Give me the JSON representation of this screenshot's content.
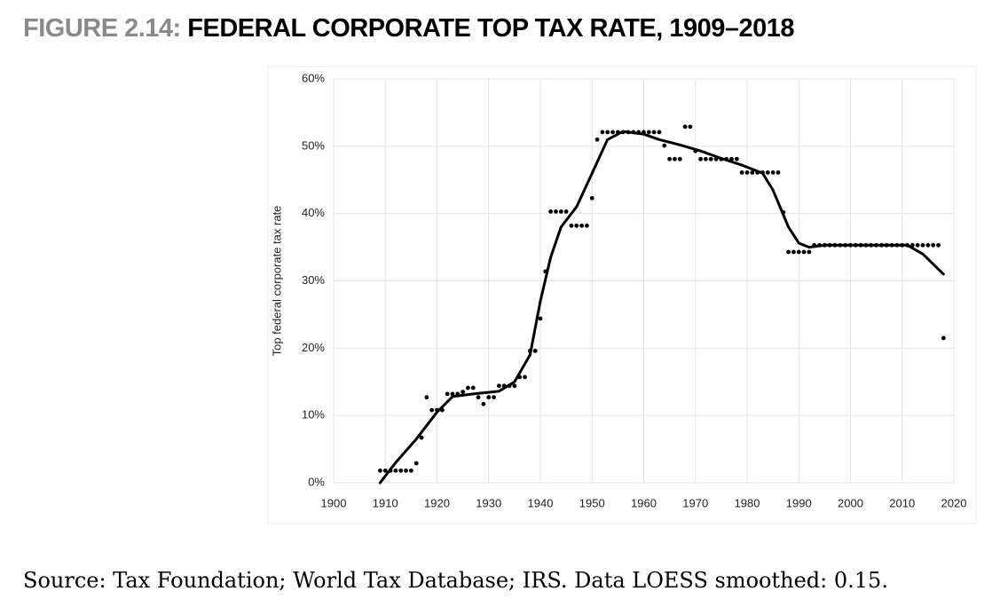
{
  "figure_label": "FIGURE 2.14:",
  "title": "FEDERAL CORPORATE TOP TAX RATE, 1909–2018",
  "chart_data": {
    "type": "scatter",
    "ylabel": "Top federal corporate tax rate",
    "xlim": [
      1900,
      2020
    ],
    "xticks": [
      1900,
      1910,
      1920,
      1930,
      1940,
      1950,
      1960,
      1970,
      1980,
      1990,
      2000,
      2010,
      2020
    ],
    "ylim": [
      0,
      60
    ],
    "yticks": [
      {
        "value": 0,
        "label": "0%"
      },
      {
        "value": 10,
        "label": "10%"
      },
      {
        "value": 20,
        "label": "20%"
      },
      {
        "value": 30,
        "label": "30%"
      },
      {
        "value": 40,
        "label": "40%"
      },
      {
        "value": 50,
        "label": "50%"
      },
      {
        "value": 60,
        "label": "60%"
      }
    ],
    "grid": true,
    "series": [
      {
        "type": "scatter",
        "color": "#000000",
        "x": [
          1909,
          1910,
          1911,
          1912,
          1913,
          1914,
          1915,
          1916,
          1917,
          1918,
          1919,
          1920,
          1921,
          1922,
          1923,
          1924,
          1925,
          1926,
          1927,
          1928,
          1929,
          1930,
          1931,
          1932,
          1933,
          1934,
          1935,
          1936,
          1937,
          1938,
          1939,
          1940,
          1941,
          1942,
          1943,
          1944,
          1945,
          1946,
          1947,
          1948,
          1949,
          1950,
          1951,
          1952,
          1953,
          1954,
          1955,
          1956,
          1957,
          1958,
          1959,
          1960,
          1961,
          1962,
          1963,
          1964,
          1965,
          1966,
          1967,
          1968,
          1969,
          1970,
          1971,
          1972,
          1973,
          1974,
          1975,
          1976,
          1977,
          1978,
          1979,
          1980,
          1981,
          1982,
          1983,
          1984,
          1985,
          1986,
          1987,
          1988,
          1989,
          1990,
          1991,
          1992,
          1993,
          1994,
          1995,
          1996,
          1997,
          1998,
          1999,
          2000,
          2001,
          2002,
          2003,
          2004,
          2005,
          2006,
          2007,
          2008,
          2009,
          2010,
          2011,
          2012,
          2013,
          2014,
          2015,
          2016,
          2017,
          2018
        ],
        "values": [
          1.8,
          1.8,
          1.8,
          1.8,
          1.8,
          1.8,
          1.8,
          2.9,
          6.7,
          12.7,
          10.8,
          10.8,
          10.8,
          13.2,
          13.2,
          13.2,
          13.5,
          14.1,
          14.1,
          12.7,
          11.7,
          12.7,
          12.7,
          14.4,
          14.4,
          14.4,
          14.4,
          15.7,
          15.7,
          19.6,
          19.6,
          24.4,
          31.4,
          40.3,
          40.3,
          40.3,
          40.3,
          38.2,
          38.2,
          38.2,
          38.2,
          42.3,
          51,
          52.1,
          52.1,
          52.1,
          52.1,
          52.1,
          52.1,
          52.1,
          52.1,
          52.1,
          52.1,
          52.1,
          52.1,
          50.1,
          48.1,
          48.1,
          48.1,
          52.9,
          52.9,
          49.3,
          48.1,
          48.1,
          48.1,
          48.1,
          48.1,
          48.1,
          48.1,
          48.1,
          46.1,
          46.1,
          46.1,
          46.1,
          46.1,
          46.1,
          46.1,
          46.1,
          40.2,
          34.3,
          34.3,
          34.3,
          34.3,
          34.3,
          35.3,
          35.3,
          35.3,
          35.3,
          35.3,
          35.3,
          35.3,
          35.3,
          35.3,
          35.3,
          35.3,
          35.3,
          35.3,
          35.3,
          35.3,
          35.3,
          35.3,
          35.3,
          35.3,
          35.3,
          35.3,
          35.3,
          35.3,
          35.3,
          35.3,
          21.5
        ]
      },
      {
        "type": "line",
        "color": "#000000",
        "x": [
          1909,
          1912,
          1916,
          1920,
          1923,
          1927,
          1932,
          1935,
          1938,
          1940,
          1942,
          1944,
          1947,
          1950,
          1953,
          1956,
          1960,
          1963,
          1967,
          1971,
          1975,
          1979,
          1983,
          1985,
          1988,
          1990,
          1992,
          1995,
          2011,
          2014,
          2018
        ],
        "values": [
          0,
          3,
          6.5,
          10.5,
          12.8,
          13.2,
          13.6,
          15,
          19,
          27,
          33.5,
          38,
          41,
          46,
          51,
          52.2,
          51.8,
          51,
          50.2,
          49.3,
          48.2,
          47.2,
          46,
          43.5,
          38,
          35.6,
          35,
          35.3,
          35.3,
          34,
          31
        ]
      }
    ]
  },
  "source": "Source: Tax Foundation; World Tax Database; IRS. Data LOESS smoothed: 0.15."
}
